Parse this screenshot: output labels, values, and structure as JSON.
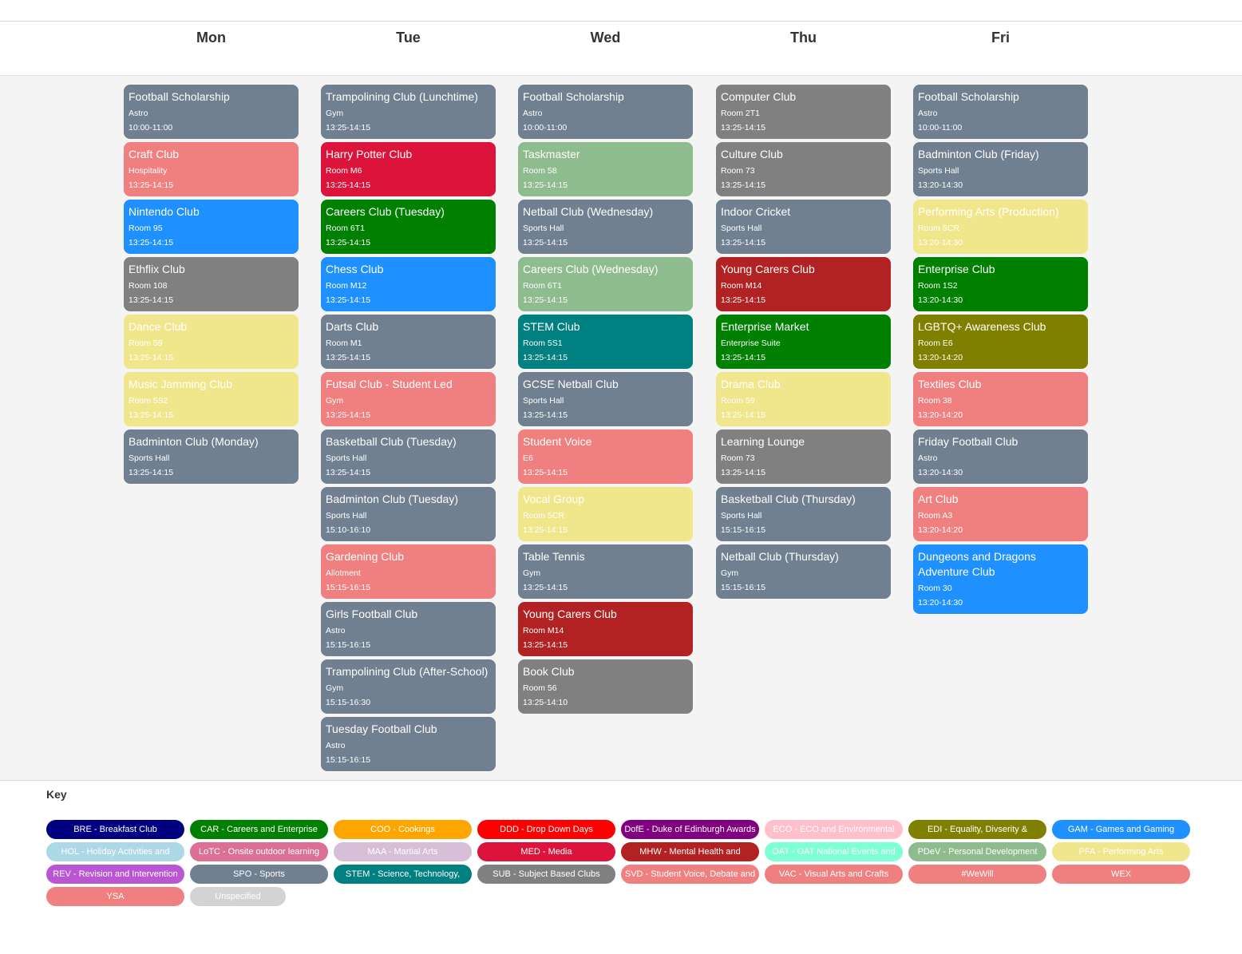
{
  "days": [
    "Mon",
    "Tue",
    "Wed",
    "Thu",
    "Fri"
  ],
  "colors": {
    "slate": "#708090",
    "salmon": "#f08080",
    "blue": "#1e90ff",
    "gray": "#808080",
    "khaki": "#f0e68c",
    "crimson": "#dc143c",
    "green": "#008000",
    "sage": "#8fbc8f",
    "teal": "#008080",
    "darkred": "#b22222",
    "olive": "#808000"
  },
  "columns": [
    {
      "day": "Mon",
      "events": [
        {
          "title": "Football Scholarship",
          "room": "Astro",
          "time": "10:00-11:00",
          "color": "#708090"
        },
        {
          "title": "Craft Club",
          "room": "Hospitality",
          "time": "13:25-14:15",
          "color": "#f08080"
        },
        {
          "title": "Nintendo Club",
          "room": "Room 95",
          "time": "13:25-14:15",
          "color": "#1e90ff"
        },
        {
          "title": "Ethflix Club",
          "room": "Room 108",
          "time": "13:25-14:15",
          "color": "#808080"
        },
        {
          "title": "Dance Club",
          "room": "Room 59",
          "time": "13:25-14:15",
          "color": "#f0e68c"
        },
        {
          "title": "Music Jamming Club",
          "room": "Room 5S2",
          "time": "13:25-14:15",
          "color": "#f0e68c"
        },
        {
          "title": "Badminton Club (Monday)",
          "room": "Sports Hall",
          "time": "13:25-14:15",
          "color": "#708090"
        }
      ]
    },
    {
      "day": "Tue",
      "events": [
        {
          "title": "Trampolining Club (Lunchtime)",
          "room": "Gym",
          "time": "13:25-14:15",
          "color": "#708090"
        },
        {
          "title": "Harry Potter Club",
          "room": "Room M6",
          "time": "13:25-14:15",
          "color": "#dc143c"
        },
        {
          "title": "Careers Club (Tuesday)",
          "room": "Room 6T1",
          "time": "13:25-14:15",
          "color": "#008000"
        },
        {
          "title": "Chess Club",
          "room": "Room M12",
          "time": "13:25-14:15",
          "color": "#1e90ff"
        },
        {
          "title": "Darts Club",
          "room": "Room M1",
          "time": "13:25-14:15",
          "color": "#708090"
        },
        {
          "title": "Futsal Club - Student Led",
          "room": "Gym",
          "time": "13:25-14:15",
          "color": "#f08080"
        },
        {
          "title": "Basketball Club (Tuesday)",
          "room": "Sports Hall",
          "time": "13:25-14:15",
          "color": "#708090"
        },
        {
          "title": "Badminton Club (Tuesday)",
          "room": "Sports Hall",
          "time": "15:10-16:10",
          "color": "#708090"
        },
        {
          "title": "Gardening Club",
          "room": "Allotment",
          "time": "15:15-16:15",
          "color": "#f08080"
        },
        {
          "title": "Girls Football Club",
          "room": "Astro",
          "time": "15:15-16:15",
          "color": "#708090"
        },
        {
          "title": "Trampolining Club (After-School)",
          "room": "Gym",
          "time": "15:15-16:30",
          "color": "#708090"
        },
        {
          "title": "Tuesday Football Club",
          "room": "Astro",
          "time": "15:15-16:15",
          "color": "#708090"
        }
      ]
    },
    {
      "day": "Wed",
      "events": [
        {
          "title": "Football Scholarship",
          "room": "Astro",
          "time": "10:00-11:00",
          "color": "#708090"
        },
        {
          "title": "Taskmaster",
          "room": "Room 58",
          "time": "13:25-14:15",
          "color": "#8fbc8f"
        },
        {
          "title": "Netball Club (Wednesday)",
          "room": "Sports Hall",
          "time": "13:25-14:15",
          "color": "#708090"
        },
        {
          "title": "Careers Club (Wednesday)",
          "room": "Room 6T1",
          "time": "13:25-14:15",
          "color": "#8fbc8f"
        },
        {
          "title": "STEM Club",
          "room": "Room 5S1",
          "time": "13:25-14:15",
          "color": "#008080"
        },
        {
          "title": "GCSE Netball Club",
          "room": "Sports Hall",
          "time": "13:25-14:15",
          "color": "#708090"
        },
        {
          "title": "Student Voice",
          "room": "E6",
          "time": "13:25-14:15",
          "color": "#f08080"
        },
        {
          "title": "Vocal Group",
          "room": "Room 5CR",
          "time": "13:25-14:15",
          "color": "#f0e68c"
        },
        {
          "title": "Table Tennis",
          "room": "Gym",
          "time": "13:25-14:15",
          "color": "#708090"
        },
        {
          "title": "Young Carers Club",
          "room": "Room M14",
          "time": "13:25-14:15",
          "color": "#b22222"
        },
        {
          "title": "Book Club",
          "room": "Room 56",
          "time": "13:25-14:10",
          "color": "#808080"
        }
      ]
    },
    {
      "day": "Thu",
      "events": [
        {
          "title": "Computer Club",
          "room": "Room 2T1",
          "time": "13:25-14:15",
          "color": "#808080"
        },
        {
          "title": "Culture Club",
          "room": "Room 73",
          "time": "13:25-14:15",
          "color": "#808080"
        },
        {
          "title": "Indoor Cricket",
          "room": "Sports Hall",
          "time": "13:25-14:15",
          "color": "#708090"
        },
        {
          "title": "Young Carers Club",
          "room": "Room M14",
          "time": "13:25-14:15",
          "color": "#b22222"
        },
        {
          "title": "Enterprise Market",
          "room": "Enterprise Suite",
          "time": "13:25-14:15",
          "color": "#008000"
        },
        {
          "title": "Drama Club",
          "room": "Room 59",
          "time": "13:25-14:15",
          "color": "#f0e68c"
        },
        {
          "title": "Learning Lounge",
          "room": "Room 73",
          "time": "13:25-14:15",
          "color": "#808080"
        },
        {
          "title": "Basketball Club (Thursday)",
          "room": "Sports Hall",
          "time": "15:15-16:15",
          "color": "#708090"
        },
        {
          "title": "Netball Club (Thursday)",
          "room": "Gym",
          "time": "15:15-16:15",
          "color": "#708090"
        }
      ]
    },
    {
      "day": "Fri",
      "events": [
        {
          "title": "Football Scholarship",
          "room": "Astro",
          "time": "10:00-11:00",
          "color": "#708090"
        },
        {
          "title": "Badminton Club (Friday)",
          "room": "Sports Hall",
          "time": "13:20-14:30",
          "color": "#708090"
        },
        {
          "title": "Performing Arts (Production)",
          "room": "Room 5CR",
          "time": "13:20-14:30",
          "color": "#f0e68c"
        },
        {
          "title": "Enterprise Club",
          "room": "Room 1S2",
          "time": "13:20-14:30",
          "color": "#008000"
        },
        {
          "title": "LGBTQ+ Awareness Club",
          "room": "Room E6",
          "time": "13:20-14:20",
          "color": "#808000"
        },
        {
          "title": "Textiles Club",
          "room": "Room 38",
          "time": "13:20-14:20",
          "color": "#f08080"
        },
        {
          "title": "Friday Football Club",
          "room": "Astro",
          "time": "13:20-14:30",
          "color": "#708090"
        },
        {
          "title": "Art Club",
          "room": "Room A3",
          "time": "13:20-14:20",
          "color": "#f08080"
        },
        {
          "title": "Dungeons and Dragons Adventure Club",
          "room": "Room 30",
          "time": "13:20-14:30",
          "color": "#1e90ff",
          "tall": true
        }
      ]
    }
  ],
  "key": {
    "title": "Key",
    "items": [
      {
        "label": "BRE - Breakfast Club",
        "color": "#000080"
      },
      {
        "label": "CAR - Careers and Enterprise",
        "color": "#008000"
      },
      {
        "label": "COO - Cookings",
        "color": "#ffa500"
      },
      {
        "label": "DDD - Drop Down Days",
        "color": "#ff0000"
      },
      {
        "label": "DofE - Duke of Edinburgh Awards",
        "color": "#800080"
      },
      {
        "label": "ECO - ECO and Environmental",
        "color": "#ffc0cb"
      },
      {
        "label": "EDI - Equality, Divserity &",
        "color": "#808000"
      },
      {
        "label": "GAM - Games and Gaming",
        "color": "#1e90ff"
      },
      {
        "label": "HOL - Holiday Activities and",
        "color": "#add8e6"
      },
      {
        "label": "LoTC - Onsite outdoor learning",
        "color": "#db7093"
      },
      {
        "label": "MAA - Martial Arts",
        "color": "#d8bfd8"
      },
      {
        "label": "MED - Media",
        "color": "#dc143c"
      },
      {
        "label": "MHW - Mental Health and",
        "color": "#b22222"
      },
      {
        "label": "OAT - OAT National Events and",
        "color": "#7fffd4"
      },
      {
        "label": "PDeV - Personal Development",
        "color": "#8fbc8f"
      },
      {
        "label": "PFA - Performing Arts",
        "color": "#f0e68c"
      },
      {
        "label": "REV - Revision and Intervention",
        "color": "#ba55d3"
      },
      {
        "label": "SPO - Sports",
        "color": "#708090"
      },
      {
        "label": "STEM - Science, Technology,",
        "color": "#008080"
      },
      {
        "label": "SUB - Subject Based Clubs",
        "color": "#808080"
      },
      {
        "label": "SVD - Student Voice, Debate and",
        "color": "#f08080"
      },
      {
        "label": "VAC - Visual Arts and Crafts",
        "color": "#f08080"
      },
      {
        "label": "#WeWill",
        "color": "#f08080"
      },
      {
        "label": "WEX",
        "color": "#f08080"
      },
      {
        "label": "YSA",
        "color": "#f08080"
      },
      {
        "label": "Unspecified",
        "color": "#d3d3d3"
      }
    ]
  }
}
